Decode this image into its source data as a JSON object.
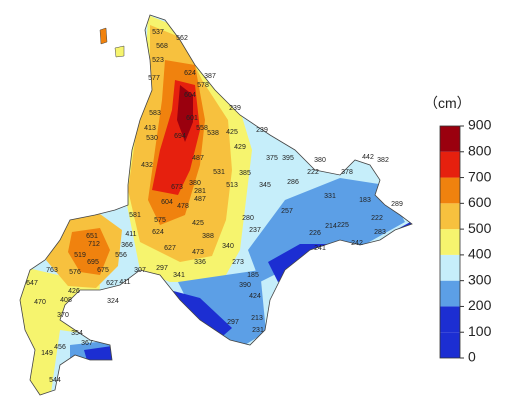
{
  "legend": {
    "unit": "（cm）",
    "ticks": [
      0,
      100,
      200,
      300,
      400,
      500,
      600,
      700,
      800,
      900
    ],
    "colors": [
      "#1c2ed2",
      "#1c2ed2",
      "#5c9fe6",
      "#c6eefa",
      "#f6f46e",
      "#f7c13e",
      "#f0820e",
      "#e6200e",
      "#9a000e"
    ]
  },
  "stations": [
    562,
    537,
    568,
    523,
    624,
    577,
    387,
    578,
    604,
    583,
    601,
    239,
    413,
    558,
    425,
    530,
    538,
    239,
    694,
    429,
    375,
    395,
    380,
    442,
    382,
    432,
    487,
    222,
    378,
    531,
    385,
    513,
    380,
    281,
    345,
    286,
    331,
    183,
    289,
    673,
    604,
    487,
    478,
    257,
    581,
    280,
    222,
    575,
    425,
    225,
    411,
    624,
    388,
    237,
    226,
    214,
    283,
    651,
    712,
    366,
    627,
    340,
    336,
    473,
    241,
    242,
    519,
    556,
    695,
    675,
    307,
    297,
    341,
    273,
    185,
    763,
    576,
    627,
    411,
    647,
    426,
    408,
    390,
    470,
    324,
    424,
    370,
    297,
    213,
    354,
    231,
    367,
    456,
    149,
    544
  ]
}
